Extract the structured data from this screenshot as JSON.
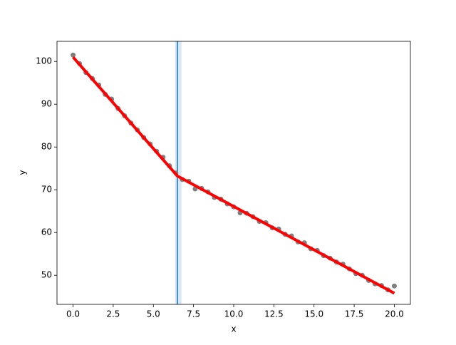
{
  "chart_data": {
    "type": "scatter",
    "xlabel": "x",
    "ylabel": "y",
    "x": [
      0,
      0.4,
      0.8,
      1.2,
      1.6,
      2.0,
      2.4,
      2.8,
      3.2,
      3.6,
      4.0,
      4.4,
      4.8,
      5.2,
      5.6,
      6.0,
      6.4,
      6.8,
      7.2,
      7.6,
      8.0,
      8.4,
      8.8,
      9.2,
      9.6,
      10.0,
      10.4,
      10.8,
      11.2,
      11.6,
      12.0,
      12.4,
      12.8,
      13.2,
      13.6,
      14.0,
      14.4,
      14.8,
      15.2,
      15.6,
      16.0,
      16.4,
      16.8,
      17.2,
      17.6,
      18.0,
      18.4,
      18.8,
      19.2,
      19.6,
      20.0
    ],
    "series": [
      {
        "color": "#808080",
        "values": [
          101.5,
          99.5,
          97.4,
          96.0,
          94.5,
          92.3,
          91.2,
          89.0,
          87.3,
          85.6,
          84.0,
          82.2,
          80.7,
          79.0,
          77.6,
          75.6,
          73.9,
          72.4,
          72.0,
          70.2,
          70.3,
          69.5,
          68.2,
          67.8,
          66.7,
          66.0,
          64.6,
          64.5,
          63.7,
          62.6,
          62.3,
          61.1,
          60.8,
          59.6,
          59.2,
          57.8,
          57.6,
          56.2,
          55.8,
          54.6,
          54.0,
          53.1,
          52.6,
          51.5,
          50.4,
          50.0,
          48.8,
          48.0,
          47.6,
          46.6,
          47.5
        ]
      }
    ],
    "fit": {
      "color": "#ff0000",
      "x": [
        0,
        6.5,
        20
      ],
      "values": [
        101,
        73.2,
        45.8
      ]
    },
    "vline": {
      "x": 6.5,
      "color": "#1f77b4",
      "span": [
        6.35,
        6.75
      ],
      "span_color": "#d6e8f5"
    },
    "xlim": [
      -1,
      21
    ],
    "ylim": [
      43.2,
      104.7
    ],
    "xticks": [
      {
        "value": 0,
        "label": "0.0"
      },
      {
        "value": 2.5,
        "label": "2.5"
      },
      {
        "value": 5,
        "label": "5.0"
      },
      {
        "value": 7.5,
        "label": "7.5"
      },
      {
        "value": 10,
        "label": "10.0"
      },
      {
        "value": 12.5,
        "label": "12.5"
      },
      {
        "value": 15,
        "label": "15.0"
      },
      {
        "value": 17.5,
        "label": "17.5"
      },
      {
        "value": 20,
        "label": "20.0"
      }
    ],
    "yticks": [
      50,
      60,
      70,
      80,
      90,
      100
    ]
  }
}
